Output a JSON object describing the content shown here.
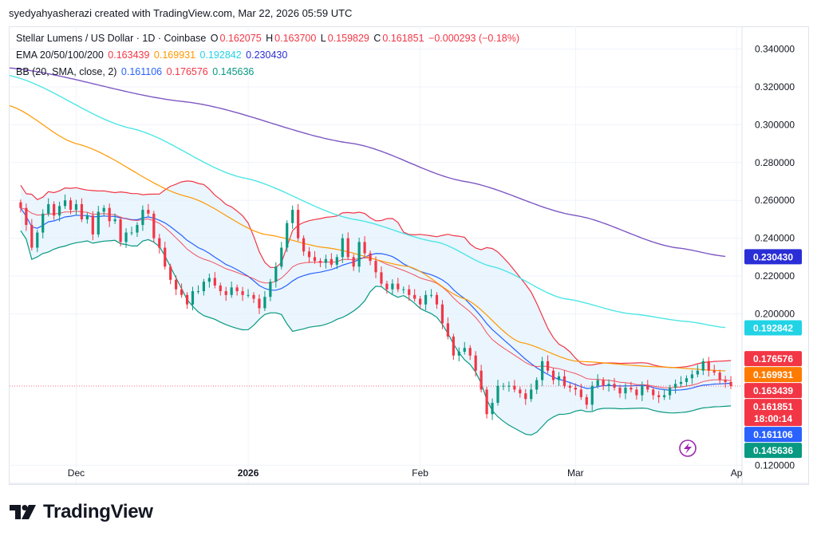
{
  "header": {
    "attribution": "syedyahyasherazi created with TradingView.com, Mar 22, 2026 05:59 UTC"
  },
  "legend": {
    "title": "Stellar Lumens / US Dollar · 1D · Coinbase",
    "o_label": "O",
    "o_value": "0.162075",
    "h_label": "H",
    "h_value": "0.163700",
    "l_label": "L",
    "l_value": "0.159829",
    "c_label": "C",
    "c_value": "0.161851",
    "change": "−0.000293 (−0.18%)",
    "ema_label": "EMA 20/50/100/200",
    "ema20": "0.163439",
    "ema50": "0.169931",
    "ema100": "0.192842",
    "ema200": "0.230430",
    "bb_label": "BB (20, SMA, close, 2)",
    "bb_basis": "0.161106",
    "bb_upper": "0.176576",
    "bb_lower": "0.145636"
  },
  "colors": {
    "up": "#089981",
    "down": "#f23645",
    "ema20": "#f23645",
    "ema50": "#ff9800",
    "ema100": "#4ee6e6",
    "ema200": "#7e57c2",
    "bb_basis": "#2962ff",
    "bb_upper": "#f23645",
    "bb_lower": "#089981",
    "bb_fill": "#e3f2fd"
  },
  "chart_data": {
    "type": "candlestick",
    "title": "Stellar Lumens / US Dollar · 1D · Coinbase",
    "ylim": [
      0.11,
      0.352
    ],
    "y_ticks": [
      "0.340000",
      "0.320000",
      "0.300000",
      "0.280000",
      "0.260000",
      "0.240000",
      "0.220000",
      "0.200000",
      "0.120000"
    ],
    "x_ticks": [
      "Dec",
      "2026",
      "Feb",
      "Mar",
      "Ap"
    ],
    "x_tick_days": [
      10,
      41,
      72,
      100,
      129
    ],
    "x_range_days": [
      -2,
      130
    ],
    "price_labels": [
      {
        "label": "0.230430",
        "value": 0.23043,
        "color": "#2a2ed6"
      },
      {
        "label": "0.192842",
        "value": 0.192842,
        "color": "#22d3e6"
      },
      {
        "label": "0.176576",
        "value": 0.176576,
        "color": "#f23645"
      },
      {
        "label": "0.169931",
        "value": 0.169931,
        "color": "#ff7b00"
      },
      {
        "label": "0.163439",
        "value": 0.163439,
        "color": "#f23645"
      },
      {
        "label": "0.161851",
        "value": 0.161851,
        "color": "#f23645",
        "extra": "18:00:14"
      },
      {
        "label": "0.161106",
        "value": 0.161106,
        "color": "#2962ff"
      },
      {
        "label": "0.145636",
        "value": 0.145636,
        "color": "#089981"
      }
    ],
    "closes": [
      0.256,
      0.247,
      0.235,
      0.243,
      0.253,
      0.258,
      0.252,
      0.257,
      0.26,
      0.255,
      0.258,
      0.25,
      0.252,
      0.242,
      0.254,
      0.256,
      0.249,
      0.25,
      0.238,
      0.243,
      0.243,
      0.247,
      0.255,
      0.253,
      0.24,
      0.235,
      0.225,
      0.218,
      0.213,
      0.21,
      0.205,
      0.212,
      0.212,
      0.217,
      0.219,
      0.215,
      0.212,
      0.21,
      0.214,
      0.212,
      0.21,
      0.21,
      0.208,
      0.203,
      0.209,
      0.217,
      0.225,
      0.235,
      0.248,
      0.255,
      0.24,
      0.233,
      0.23,
      0.228,
      0.227,
      0.229,
      0.226,
      0.23,
      0.24,
      0.23,
      0.225,
      0.238,
      0.232,
      0.228,
      0.222,
      0.216,
      0.213,
      0.216,
      0.213,
      0.213,
      0.21,
      0.208,
      0.205,
      0.21,
      0.21,
      0.205,
      0.195,
      0.188,
      0.178,
      0.18,
      0.182,
      0.178,
      0.17,
      0.16,
      0.147,
      0.153,
      0.162,
      0.162,
      0.162,
      0.16,
      0.158,
      0.155,
      0.16,
      0.165,
      0.175,
      0.17,
      0.165,
      0.167,
      0.162,
      0.161,
      0.16,
      0.156,
      0.152,
      0.162,
      0.165,
      0.162,
      0.163,
      0.161,
      0.158,
      0.161,
      0.16,
      0.157,
      0.162,
      0.16,
      0.157,
      0.156,
      0.157,
      0.161,
      0.163,
      0.164,
      0.166,
      0.168,
      0.17,
      0.175,
      0.17,
      0.169,
      0.165,
      0.164,
      0.161851
    ],
    "series_lines": {
      "ema200_knots": [
        [
          -2,
          0.33
        ],
        [
          30,
          0.312
        ],
        [
          60,
          0.29
        ],
        [
          80,
          0.27
        ],
        [
          100,
          0.252
        ],
        [
          118,
          0.235
        ],
        [
          127,
          0.2304
        ]
      ],
      "ema100_knots": [
        [
          -2,
          0.326
        ],
        [
          20,
          0.298
        ],
        [
          40,
          0.272
        ],
        [
          60,
          0.25
        ],
        [
          75,
          0.238
        ],
        [
          85,
          0.225
        ],
        [
          98,
          0.208
        ],
        [
          110,
          0.2
        ],
        [
          120,
          0.196
        ],
        [
          127,
          0.1928
        ]
      ],
      "ema50_knots": [
        [
          -2,
          0.31
        ],
        [
          10,
          0.29
        ],
        [
          30,
          0.262
        ],
        [
          44,
          0.242
        ],
        [
          55,
          0.235
        ],
        [
          70,
          0.225
        ],
        [
          80,
          0.208
        ],
        [
          90,
          0.185
        ],
        [
          100,
          0.175
        ],
        [
          115,
          0.172
        ],
        [
          127,
          0.1699
        ]
      ]
    }
  }
}
